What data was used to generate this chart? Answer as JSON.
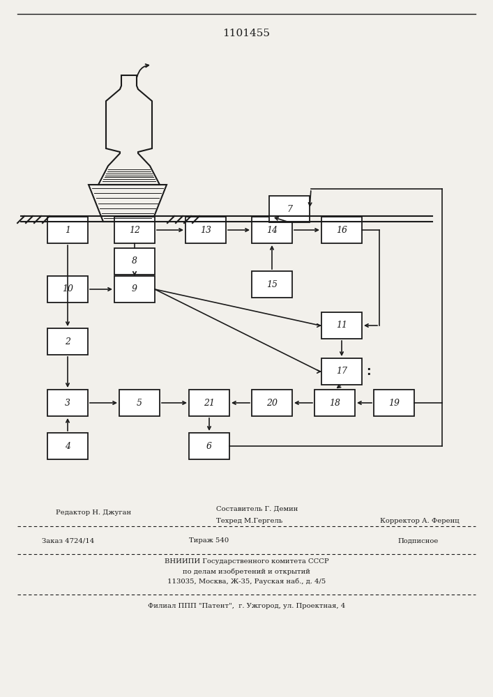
{
  "patent_number": "1101455",
  "bg_color": "#f2f0eb",
  "line_color": "#1a1a1a",
  "box_color": "#ffffff",
  "figsize": [
    7.07,
    10.0
  ],
  "dpi": 100,
  "footer": {
    "editor": "Редактор Н. Джуган",
    "author": "Составитель Г. Демин",
    "techred": "Техред М.Гергель",
    "corrector": "Корректор А. Ференц",
    "order": "Заказ 4724/14",
    "tirazh": "Тираж 540",
    "podpisnoe": "Подписное",
    "vniipи": "ВНИИПИ Государственного комитета СССР",
    "po_delam": "по делам изобретений и открытий",
    "address": "113035, Москва, Ж-35, Рауская наб., д. 4/5",
    "filial": "Филиал ППП \"Патент\",  г. Ужгород, ул. Проектная, 4"
  }
}
